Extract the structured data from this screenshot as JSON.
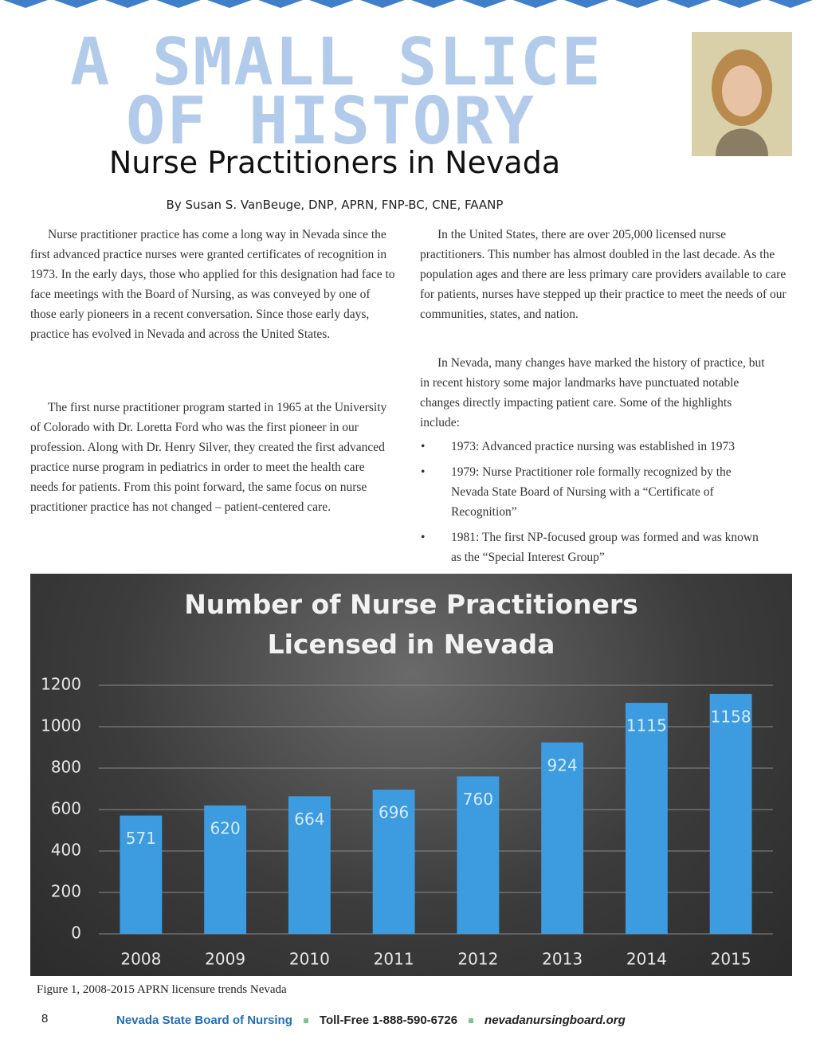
{
  "banner": [
    "A SMALL SLICE",
    "OF HISTORY"
  ],
  "header": {
    "title": "Nurse Practitioners in Nevada",
    "byline": "By Susan S. VanBeuge, DNP, APRN, FNP-BC, CNE, FAANP"
  },
  "left_column": [
    "Nurse practitioner practice has come a long way in Nevada since the first advanced practice nurses were granted certificates of recognition in 1973. In the early days, those who applied for this designation had face to face meetings with the Board of Nursing, as was conveyed by one of those early pioneers in a recent conversation.  Since those early days, practice has evolved in Nevada and across the United States.",
    "The first nurse practitioner program started in 1965 at the University of  Colorado with Dr. Loretta Ford who was the first pioneer in our profession.  Along with Dr. Henry Silver, they created the first advanced practice nurse program in pediatrics in order to meet the health care needs for patients. From this point forward, the same focus on nurse practitioner practice has not changed – patient-centered care."
  ],
  "right_column": [
    "In the United States, there are over 205,000 licensed nurse practitioners. This number has almost doubled in the last decade. As the population ages and there are less primary care providers available to care for patients, nurses have stepped up their practice to meet the needs of our communities, states, and nation.",
    "In Nevada, many changes have marked the history of practice, but in recent history some major landmarks have punctuated notable changes directly impacting patient care. Some of the highlights include:"
  ],
  "bullets": [
    "1973:  Advanced practice nursing was established in 1973",
    "1979:  Nurse Practitioner role formally recognized by the Nevada State Board of Nursing with a “Certificate of Recognition”",
    "1981:  The first NP-focused group was formed and was known as the “Special Interest Group”"
  ],
  "chart_data": {
    "type": "bar",
    "title": "Number of Nurse Practitioners Licensed in Nevada",
    "categories": [
      "2008",
      "2009",
      "2010",
      "2011",
      "2012",
      "2013",
      "2014",
      "2015"
    ],
    "values": [
      571,
      620,
      664,
      696,
      760,
      924,
      1115,
      1158
    ],
    "color": "#3d9be0",
    "ylim": [
      0,
      1200
    ],
    "yticks": [
      0,
      200,
      400,
      600,
      800,
      1000,
      1200
    ],
    "grid": true
  },
  "caption": "Figure 1, 2008-2015 APRN licensure trends Nevada",
  "footer": {
    "page": "8",
    "organization": "Nevada State Board of Nursing",
    "phone": "Toll-Free 1-888-590-6726",
    "website": "nevadanursingboard.org"
  }
}
